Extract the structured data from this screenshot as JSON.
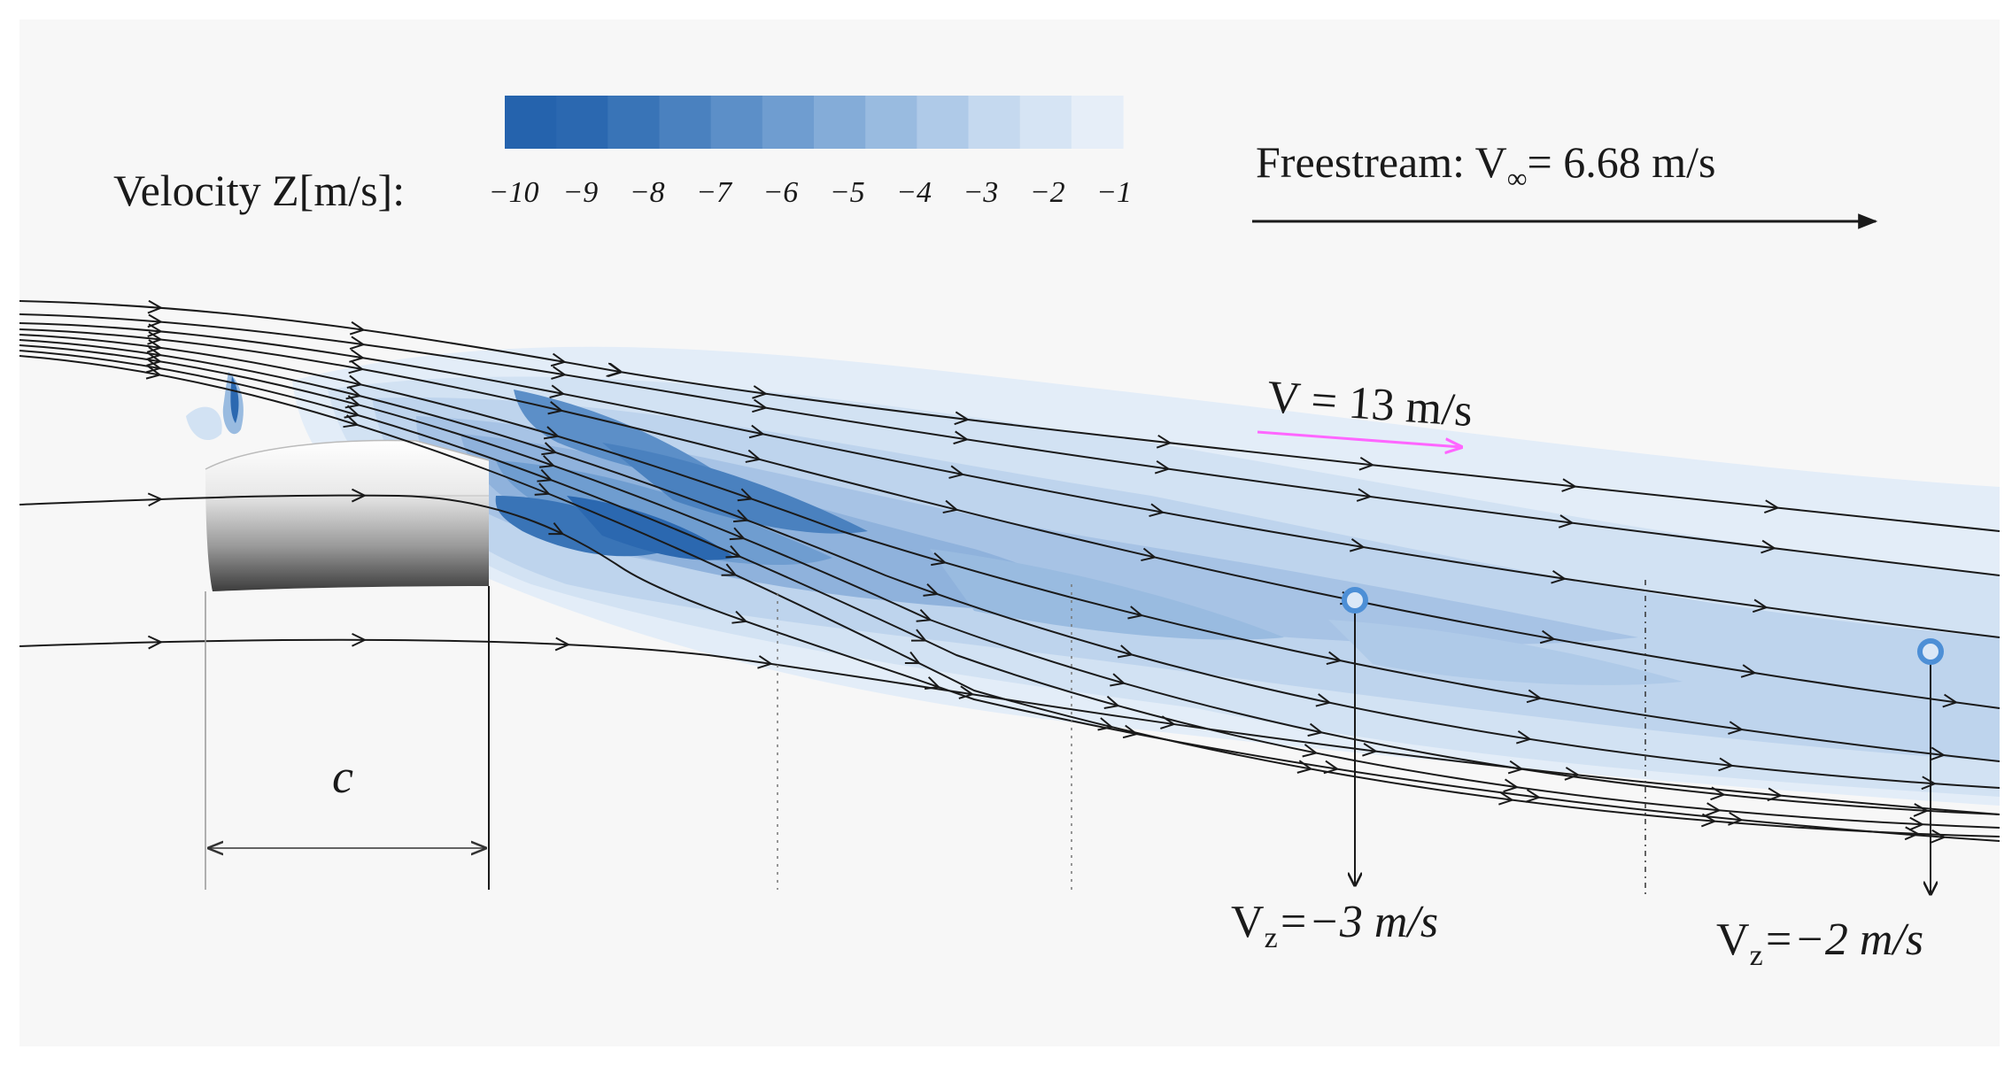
{
  "colorbar": {
    "label": "Velocity Z[m/s]:",
    "ticks": [
      "−10",
      "−9",
      "−8",
      "−7",
      "−6",
      "−5",
      "−4",
      "−3",
      "−2",
      "−1"
    ],
    "colors": [
      "#2563ad",
      "#2b68b0",
      "#3974b7",
      "#4a81bf",
      "#5c8fc8",
      "#6f9dd0",
      "#84acd8",
      "#99bbe0",
      "#afcae8",
      "#c5d9ef",
      "#d6e4f4",
      "#e6eef8"
    ]
  },
  "freestream": {
    "text": "Freestream: V",
    "subscript": "∞",
    "value": "= 6.68 m/s"
  },
  "velocity_vector": {
    "label": "V = 13 m/s",
    "color": "#ff66ff"
  },
  "chord": {
    "label": "c"
  },
  "probes": [
    {
      "prefix": "V",
      "subscript": "z",
      "value": "=−3 m/s"
    },
    {
      "prefix": "V",
      "subscript": "z",
      "value": "=−2 m/s"
    }
  ],
  "colors": {
    "background": "#f7f7f7",
    "streamline": "#1a1a1a",
    "probe": "#4d8fd6"
  }
}
